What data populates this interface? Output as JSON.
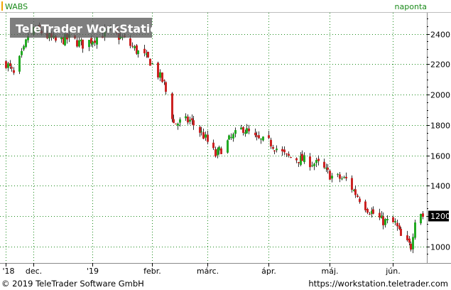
{
  "header": {
    "symbol": "WABS",
    "interval": "naponta",
    "watermark": "TeleTrader WorkStation"
  },
  "footer": {
    "copyright": "© 2019 TeleTrader Software GmbH",
    "url": "https://workstation.teletrader.com"
  },
  "colors": {
    "up": "#22aa22",
    "down": "#cc2222",
    "grid": "#1a8a1a",
    "frame": "#8a8a8a",
    "symbol_marker": "#f0a500",
    "current_price_box": "#000000"
  },
  "chart_data": {
    "type": "candlestick",
    "ylim": [
      900,
      2530
    ],
    "y_ticks": [
      1000,
      1200,
      1400,
      1600,
      1800,
      2000,
      2200,
      2400
    ],
    "y_tick_labels": [
      "1000",
      "",
      "1400",
      "1600",
      "1800",
      "2000",
      "2200",
      "2400"
    ],
    "current_price": 1200,
    "current_price_label": "1200",
    "x_ticks": [
      {
        "label": "'18",
        "date": "2018-11-19"
      },
      {
        "label": "dec.",
        "date": "2018-12-03"
      },
      {
        "label": "'19",
        "date": "2019-01-02"
      },
      {
        "label": "febr.",
        "date": "2019-02-01"
      },
      {
        "label": "márc.",
        "date": "2019-03-01"
      },
      {
        "label": "ápr.",
        "date": "2019-04-01"
      },
      {
        "label": "máj.",
        "date": "2019-05-02"
      },
      {
        "label": "jún.",
        "date": "2019-06-03"
      }
    ],
    "close_path": [
      [
        "2018-11-19",
        2210
      ],
      [
        "2018-11-23",
        2130
      ],
      [
        "2018-11-28",
        2290
      ],
      [
        "2018-12-01",
        2440
      ],
      [
        "2018-12-07",
        2410
      ],
      [
        "2018-12-14",
        2350
      ],
      [
        "2018-12-21",
        2370
      ],
      [
        "2018-12-28",
        2330
      ],
      [
        "2019-01-04",
        2380
      ],
      [
        "2019-01-10",
        2420
      ],
      [
        "2019-01-18",
        2360
      ],
      [
        "2019-01-24",
        2290
      ],
      [
        "2019-01-31",
        2220
      ],
      [
        "2019-02-07",
        2070
      ],
      [
        "2019-02-12",
        1810
      ],
      [
        "2019-02-20",
        1830
      ],
      [
        "2019-02-27",
        1730
      ],
      [
        "2019-03-05",
        1600
      ],
      [
        "2019-03-12",
        1700
      ],
      [
        "2019-03-19",
        1780
      ],
      [
        "2019-03-26",
        1700
      ],
      [
        "2019-04-02",
        1680
      ],
      [
        "2019-04-10",
        1590
      ],
      [
        "2019-04-18",
        1570
      ],
      [
        "2019-04-26",
        1540
      ],
      [
        "2019-05-03",
        1460
      ],
      [
        "2019-05-10",
        1440
      ],
      [
        "2019-05-15",
        1350
      ],
      [
        "2019-05-21",
        1250
      ],
      [
        "2019-05-28",
        1170
      ],
      [
        "2019-06-04",
        1150
      ],
      [
        "2019-06-08",
        1030
      ],
      [
        "2019-06-12",
        1000
      ],
      [
        "2019-06-15",
        1280
      ],
      [
        "2019-06-18",
        1200
      ]
    ]
  }
}
